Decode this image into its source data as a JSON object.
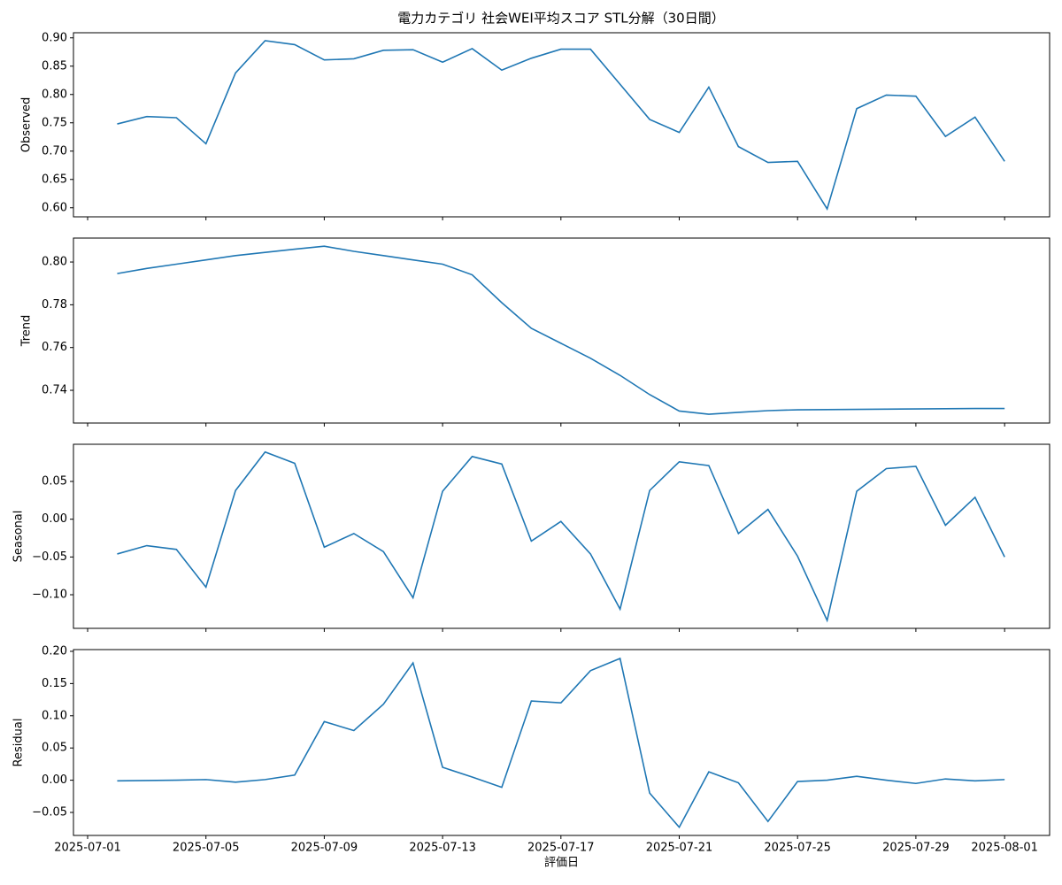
{
  "chart_data": [
    {
      "type": "line",
      "title": "電力カテゴリ 社会WEI平均スコア STL分解（30日間）",
      "y_label": "Observed",
      "color": "#1f77b4",
      "x": [
        "2025-07-02",
        "2025-07-03",
        "2025-07-04",
        "2025-07-05",
        "2025-07-06",
        "2025-07-07",
        "2025-07-08",
        "2025-07-09",
        "2025-07-10",
        "2025-07-11",
        "2025-07-12",
        "2025-07-13",
        "2025-07-14",
        "2025-07-15",
        "2025-07-16",
        "2025-07-17",
        "2025-07-18",
        "2025-07-19",
        "2025-07-20",
        "2025-07-21",
        "2025-07-22",
        "2025-07-23",
        "2025-07-24",
        "2025-07-25",
        "2025-07-26",
        "2025-07-27",
        "2025-07-28",
        "2025-07-29",
        "2025-07-30",
        "2025-07-31",
        "2025-08-01"
      ],
      "values": [
        0.748,
        0.761,
        0.759,
        0.713,
        0.838,
        0.895,
        0.888,
        0.861,
        0.863,
        0.878,
        0.879,
        0.857,
        0.881,
        0.843,
        0.864,
        0.88,
        0.88,
        0.818,
        0.756,
        0.733,
        0.813,
        0.708,
        0.68,
        0.682,
        0.598,
        0.775,
        0.799,
        0.797,
        0.726,
        0.76,
        0.682
      ],
      "xlim": [
        "2025-06-30T12:30",
        "2025-08-02T12:30"
      ],
      "xticks": [
        "2025-07-01",
        "2025-07-05",
        "2025-07-09",
        "2025-07-13",
        "2025-07-17",
        "2025-07-21",
        "2025-07-25",
        "2025-07-29",
        "2025-08-01"
      ],
      "ylim": [
        0.584,
        0.909
      ],
      "yticks": [
        {
          "value": 0.6,
          "label": "0.60"
        },
        0.65,
        {
          "value": 0.7,
          "label": "0.70"
        },
        0.75,
        {
          "value": 0.8,
          "label": "0.80"
        },
        0.85,
        {
          "value": 0.9,
          "label": "0.90"
        }
      ]
    },
    {
      "type": "line",
      "y_label": "Trend",
      "color": "#1f77b4",
      "x": [
        "2025-07-02",
        "2025-07-03",
        "2025-07-04",
        "2025-07-05",
        "2025-07-06",
        "2025-07-07",
        "2025-07-08",
        "2025-07-09",
        "2025-07-10",
        "2025-07-11",
        "2025-07-12",
        "2025-07-13",
        "2025-07-14",
        "2025-07-15",
        "2025-07-16",
        "2025-07-17",
        "2025-07-18",
        "2025-07-19",
        "2025-07-20",
        "2025-07-21",
        "2025-07-22",
        "2025-07-23",
        "2025-07-24",
        "2025-07-25",
        "2025-07-26",
        "2025-07-27",
        "2025-07-28",
        "2025-07-29",
        "2025-07-30",
        "2025-07-31",
        "2025-08-01"
      ],
      "values": [
        0.7946,
        0.797,
        0.799,
        0.801,
        0.803,
        0.8045,
        0.806,
        0.8074,
        0.805,
        0.803,
        0.801,
        0.799,
        0.794,
        0.781,
        0.769,
        0.762,
        0.755,
        0.747,
        0.738,
        0.7303,
        0.7288,
        0.7297,
        0.7305,
        0.7309,
        0.731,
        0.7311,
        0.7312,
        0.7313,
        0.7314,
        0.7315,
        0.7315
      ],
      "xlim": [
        "2025-06-30T12:30",
        "2025-08-02T12:30"
      ],
      "xticks": [
        "2025-07-01",
        "2025-07-05",
        "2025-07-09",
        "2025-07-13",
        "2025-07-17",
        "2025-07-21",
        "2025-07-25",
        "2025-07-29",
        "2025-08-01"
      ],
      "ylim": [
        0.7247,
        0.8112
      ],
      "yticks": [
        0.74,
        0.76,
        0.78,
        {
          "value": 0.8,
          "label": "0.80"
        }
      ]
    },
    {
      "type": "line",
      "y_label": "Seasonal",
      "color": "#1f77b4",
      "x": [
        "2025-07-02",
        "2025-07-03",
        "2025-07-04",
        "2025-07-05",
        "2025-07-06",
        "2025-07-07",
        "2025-07-08",
        "2025-07-09",
        "2025-07-10",
        "2025-07-11",
        "2025-07-12",
        "2025-07-13",
        "2025-07-14",
        "2025-07-15",
        "2025-07-16",
        "2025-07-17",
        "2025-07-18",
        "2025-07-19",
        "2025-07-20",
        "2025-07-21",
        "2025-07-22",
        "2025-07-23",
        "2025-07-24",
        "2025-07-25",
        "2025-07-26",
        "2025-07-27",
        "2025-07-28",
        "2025-07-29",
        "2025-07-30",
        "2025-07-31",
        "2025-08-01"
      ],
      "values": [
        -0.046,
        -0.035,
        -0.04,
        -0.09,
        0.038,
        0.089,
        0.074,
        -0.037,
        -0.019,
        -0.043,
        -0.104,
        0.037,
        0.083,
        0.073,
        -0.029,
        -0.003,
        -0.046,
        -0.119,
        0.038,
        0.076,
        0.071,
        -0.019,
        0.013,
        -0.049,
        -0.134,
        0.037,
        0.067,
        0.07,
        -0.008,
        0.029,
        -0.05
      ],
      "xlim": [
        "2025-06-30T12:30",
        "2025-08-02T12:30"
      ],
      "xticks": [
        "2025-07-01",
        "2025-07-05",
        "2025-07-09",
        "2025-07-13",
        "2025-07-17",
        "2025-07-21",
        "2025-07-25",
        "2025-07-29",
        "2025-08-01"
      ],
      "ylim": [
        -0.1445,
        0.0992
      ],
      "yticks": [
        {
          "value": -0.1,
          "label": "−0.10"
        },
        {
          "value": -0.05,
          "label": "−0.05"
        },
        {
          "value": 0,
          "label": "0.00"
        },
        0.05
      ]
    },
    {
      "type": "line",
      "y_label": "Residual",
      "x_label": "評価日",
      "color": "#1f77b4",
      "x": [
        "2025-07-02",
        "2025-07-03",
        "2025-07-04",
        "2025-07-05",
        "2025-07-06",
        "2025-07-07",
        "2025-07-08",
        "2025-07-09",
        "2025-07-10",
        "2025-07-11",
        "2025-07-12",
        "2025-07-13",
        "2025-07-14",
        "2025-07-15",
        "2025-07-16",
        "2025-07-17",
        "2025-07-18",
        "2025-07-19",
        "2025-07-20",
        "2025-07-21",
        "2025-07-22",
        "2025-07-23",
        "2025-07-24",
        "2025-07-25",
        "2025-07-26",
        "2025-07-27",
        "2025-07-28",
        "2025-07-29",
        "2025-07-30",
        "2025-07-31",
        "2025-08-01"
      ],
      "values": [
        -0.001,
        -0.0005,
        0.0,
        0.001,
        -0.003,
        0.001,
        0.008,
        0.091,
        0.077,
        0.118,
        0.182,
        0.02,
        0.005,
        -0.011,
        0.123,
        0.12,
        0.17,
        0.189,
        -0.02,
        -0.073,
        0.013,
        -0.004,
        -0.064,
        -0.002,
        0.0,
        0.006,
        0.0,
        -0.005,
        0.002,
        -0.001,
        0.001
      ],
      "xlim": [
        "2025-06-30T12:30",
        "2025-08-02T12:30"
      ],
      "xticks": [
        "2025-07-01",
        "2025-07-05",
        "2025-07-09",
        "2025-07-13",
        "2025-07-17",
        "2025-07-21",
        "2025-07-25",
        "2025-07-29",
        "2025-08-01"
      ],
      "ylim": [
        -0.0857,
        0.2027
      ],
      "yticks": [
        {
          "value": -0.05,
          "label": "−0.05"
        },
        {
          "value": 0,
          "label": "0.00"
        },
        0.05,
        {
          "value": 0.1,
          "label": "0.10"
        },
        0.15,
        {
          "value": 0.2,
          "label": "0.20"
        }
      ]
    }
  ]
}
